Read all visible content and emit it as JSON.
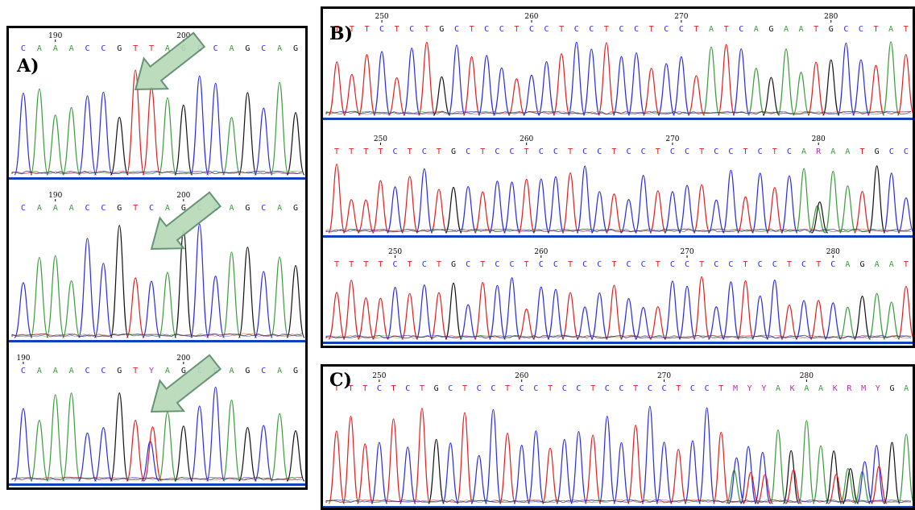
{
  "colors": {
    "A": "#3a9c3a",
    "C": "#2b2be0",
    "G": "#111111",
    "T": "#e02020",
    "ambiguous": "#b030b0"
  },
  "panels": [
    {
      "label": "A)",
      "tracks": [
        {
          "ticks": [
            {
              "label": "190",
              "index": 2
            },
            {
              "label": "200",
              "index": 10
            }
          ],
          "bases": [
            "C",
            "A",
            "A",
            "A",
            "C",
            "C",
            "G",
            "T",
            "T",
            "A",
            "G",
            "C",
            "C",
            "A",
            "G",
            "C",
            "A",
            "G"
          ],
          "arrow_index": 7
        },
        {
          "ticks": [
            {
              "label": "190",
              "index": 2
            },
            {
              "label": "200",
              "index": 10
            }
          ],
          "bases": [
            "C",
            "A",
            "A",
            "A",
            "C",
            "C",
            "G",
            "T",
            "C",
            "A",
            "G",
            "C",
            "C",
            "A",
            "G",
            "C",
            "A",
            "G"
          ],
          "arrow_index": 8
        },
        {
          "ticks": [
            {
              "label": "190",
              "index": 0
            },
            {
              "label": "200",
              "index": 10
            }
          ],
          "bases": [
            "C",
            "A",
            "A",
            "A",
            "C",
            "C",
            "G",
            "T",
            "Y",
            "A",
            "G",
            "C",
            "C",
            "A",
            "G",
            "C",
            "A",
            "G"
          ],
          "arrow_index": 8
        }
      ]
    },
    {
      "label": "B)",
      "tracks": [
        {
          "ticks": [
            {
              "label": "250",
              "index": 3
            },
            {
              "label": "260",
              "index": 13
            },
            {
              "label": "270",
              "index": 23
            },
            {
              "label": "280",
              "index": 33
            }
          ],
          "bases": [
            "T",
            "T",
            "T",
            "C",
            "T",
            "C",
            "T",
            "G",
            "C",
            "T",
            "C",
            "C",
            "T",
            "C",
            "C",
            "T",
            "C",
            "C",
            "T",
            "C",
            "C",
            "T",
            "C",
            "C",
            "T",
            "A",
            "T",
            "C",
            "A",
            "G",
            "A",
            "A",
            "T",
            "G",
            "C",
            "C",
            "T",
            "A",
            "T"
          ]
        },
        {
          "ticks": [
            {
              "label": "250",
              "index": 3
            },
            {
              "label": "260",
              "index": 13
            },
            {
              "label": "270",
              "index": 23
            },
            {
              "label": "280",
              "index": 33
            }
          ],
          "bases": [
            "T",
            "T",
            "T",
            "T",
            "C",
            "T",
            "C",
            "T",
            "G",
            "C",
            "T",
            "C",
            "C",
            "T",
            "C",
            "C",
            "T",
            "C",
            "C",
            "T",
            "C",
            "C",
            "T",
            "C",
            "C",
            "T",
            "C",
            "C",
            "T",
            "C",
            "T",
            "C",
            "A",
            "R",
            "A",
            "A",
            "T",
            "G",
            "C",
            "C"
          ]
        },
        {
          "ticks": [
            {
              "label": "250",
              "index": 4
            },
            {
              "label": "260",
              "index": 14
            },
            {
              "label": "270",
              "index": 24
            },
            {
              "label": "280",
              "index": 34
            }
          ],
          "bases": [
            "T",
            "T",
            "T",
            "T",
            "C",
            "T",
            "C",
            "T",
            "G",
            "C",
            "T",
            "C",
            "C",
            "T",
            "C",
            "C",
            "T",
            "C",
            "C",
            "T",
            "C",
            "C",
            "T",
            "C",
            "C",
            "T",
            "C",
            "C",
            "T",
            "C",
            "C",
            "T",
            "C",
            "T",
            "C",
            "A",
            "G",
            "A",
            "A",
            "T"
          ]
        }
      ]
    },
    {
      "label": "C)",
      "tracks": [
        {
          "ticks": [
            {
              "label": "250",
              "index": 3
            },
            {
              "label": "260",
              "index": 13
            },
            {
              "label": "270",
              "index": 23
            },
            {
              "label": "280",
              "index": 33
            }
          ],
          "bases": [
            "T",
            "T",
            "T",
            "C",
            "T",
            "C",
            "T",
            "G",
            "C",
            "T",
            "C",
            "C",
            "T",
            "C",
            "C",
            "T",
            "C",
            "C",
            "T",
            "C",
            "C",
            "T",
            "C",
            "C",
            "T",
            "C",
            "C",
            "T",
            "M",
            "Y",
            "Y",
            "A",
            "K",
            "A",
            "A",
            "K",
            "R",
            "M",
            "Y",
            "G",
            "A"
          ]
        }
      ]
    }
  ]
}
